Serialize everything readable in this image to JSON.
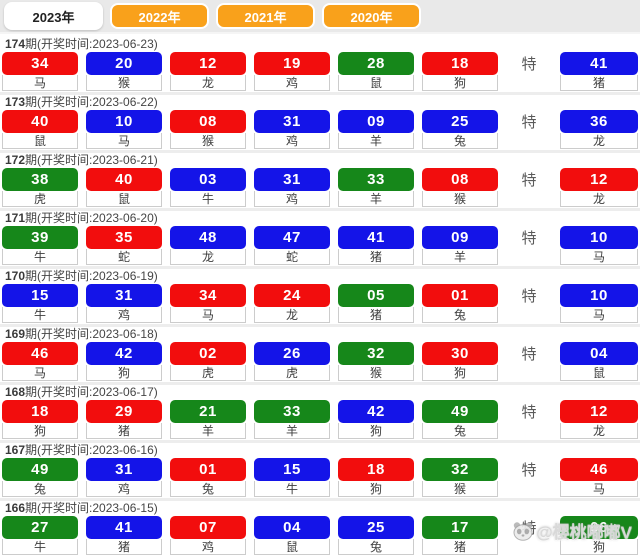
{
  "colors": {
    "orange": "#f9a11b",
    "red": "#f20d0d",
    "blue": "#1414e8",
    "green": "#16871a"
  },
  "tabs": [
    {
      "label": "2023年",
      "active": true
    },
    {
      "label": "2022年",
      "active": false
    },
    {
      "label": "2021年",
      "active": false
    },
    {
      "label": "2020年",
      "active": false
    }
  ],
  "labels": {
    "period_suffix": "期",
    "draw_time_prefix": "(开奖时间:",
    "draw_time_suffix": ")",
    "special": "特"
  },
  "rows": [
    {
      "period": "174",
      "draw_date": "2023-06-23",
      "numbers": [
        {
          "value": "34",
          "color": "red",
          "zodiac": "马"
        },
        {
          "value": "20",
          "color": "blue",
          "zodiac": "猴"
        },
        {
          "value": "12",
          "color": "red",
          "zodiac": "龙"
        },
        {
          "value": "19",
          "color": "red",
          "zodiac": "鸡"
        },
        {
          "value": "28",
          "color": "green",
          "zodiac": "鼠"
        },
        {
          "value": "18",
          "color": "red",
          "zodiac": "狗"
        }
      ],
      "special": {
        "value": "41",
        "color": "blue",
        "zodiac": "猪"
      }
    },
    {
      "period": "173",
      "draw_date": "2023-06-22",
      "numbers": [
        {
          "value": "40",
          "color": "red",
          "zodiac": "鼠"
        },
        {
          "value": "10",
          "color": "blue",
          "zodiac": "马"
        },
        {
          "value": "08",
          "color": "red",
          "zodiac": "猴"
        },
        {
          "value": "31",
          "color": "blue",
          "zodiac": "鸡"
        },
        {
          "value": "09",
          "color": "blue",
          "zodiac": "羊"
        },
        {
          "value": "25",
          "color": "blue",
          "zodiac": "兔"
        }
      ],
      "special": {
        "value": "36",
        "color": "blue",
        "zodiac": "龙"
      }
    },
    {
      "period": "172",
      "draw_date": "2023-06-21",
      "numbers": [
        {
          "value": "38",
          "color": "green",
          "zodiac": "虎"
        },
        {
          "value": "40",
          "color": "red",
          "zodiac": "鼠"
        },
        {
          "value": "03",
          "color": "blue",
          "zodiac": "牛"
        },
        {
          "value": "31",
          "color": "blue",
          "zodiac": "鸡"
        },
        {
          "value": "33",
          "color": "green",
          "zodiac": "羊"
        },
        {
          "value": "08",
          "color": "red",
          "zodiac": "猴"
        }
      ],
      "special": {
        "value": "12",
        "color": "red",
        "zodiac": "龙"
      }
    },
    {
      "period": "171",
      "draw_date": "2023-06-20",
      "numbers": [
        {
          "value": "39",
          "color": "green",
          "zodiac": "牛"
        },
        {
          "value": "35",
          "color": "red",
          "zodiac": "蛇"
        },
        {
          "value": "48",
          "color": "blue",
          "zodiac": "龙"
        },
        {
          "value": "47",
          "color": "blue",
          "zodiac": "蛇"
        },
        {
          "value": "41",
          "color": "blue",
          "zodiac": "猪"
        },
        {
          "value": "09",
          "color": "blue",
          "zodiac": "羊"
        }
      ],
      "special": {
        "value": "10",
        "color": "blue",
        "zodiac": "马"
      }
    },
    {
      "period": "170",
      "draw_date": "2023-06-19",
      "numbers": [
        {
          "value": "15",
          "color": "blue",
          "zodiac": "牛"
        },
        {
          "value": "31",
          "color": "blue",
          "zodiac": "鸡"
        },
        {
          "value": "34",
          "color": "red",
          "zodiac": "马"
        },
        {
          "value": "24",
          "color": "red",
          "zodiac": "龙"
        },
        {
          "value": "05",
          "color": "green",
          "zodiac": "猪"
        },
        {
          "value": "01",
          "color": "red",
          "zodiac": "兔"
        }
      ],
      "special": {
        "value": "10",
        "color": "blue",
        "zodiac": "马"
      }
    },
    {
      "period": "169",
      "draw_date": "2023-06-18",
      "numbers": [
        {
          "value": "46",
          "color": "red",
          "zodiac": "马"
        },
        {
          "value": "42",
          "color": "blue",
          "zodiac": "狗"
        },
        {
          "value": "02",
          "color": "red",
          "zodiac": "虎"
        },
        {
          "value": "26",
          "color": "blue",
          "zodiac": "虎"
        },
        {
          "value": "32",
          "color": "green",
          "zodiac": "猴"
        },
        {
          "value": "30",
          "color": "red",
          "zodiac": "狗"
        }
      ],
      "special": {
        "value": "04",
        "color": "blue",
        "zodiac": "鼠"
      }
    },
    {
      "period": "168",
      "draw_date": "2023-06-17",
      "numbers": [
        {
          "value": "18",
          "color": "red",
          "zodiac": "狗"
        },
        {
          "value": "29",
          "color": "red",
          "zodiac": "猪"
        },
        {
          "value": "21",
          "color": "green",
          "zodiac": "羊"
        },
        {
          "value": "33",
          "color": "green",
          "zodiac": "羊"
        },
        {
          "value": "42",
          "color": "blue",
          "zodiac": "狗"
        },
        {
          "value": "49",
          "color": "green",
          "zodiac": "兔"
        }
      ],
      "special": {
        "value": "12",
        "color": "red",
        "zodiac": "龙"
      }
    },
    {
      "period": "167",
      "draw_date": "2023-06-16",
      "numbers": [
        {
          "value": "49",
          "color": "green",
          "zodiac": "兔"
        },
        {
          "value": "31",
          "color": "blue",
          "zodiac": "鸡"
        },
        {
          "value": "01",
          "color": "red",
          "zodiac": "兔"
        },
        {
          "value": "15",
          "color": "blue",
          "zodiac": "牛"
        },
        {
          "value": "18",
          "color": "red",
          "zodiac": "狗"
        },
        {
          "value": "32",
          "color": "green",
          "zodiac": "猴"
        }
      ],
      "special": {
        "value": "46",
        "color": "red",
        "zodiac": "马"
      }
    },
    {
      "period": "166",
      "draw_date": "2023-06-15",
      "numbers": [
        {
          "value": "27",
          "color": "green",
          "zodiac": "牛"
        },
        {
          "value": "41",
          "color": "blue",
          "zodiac": "猪"
        },
        {
          "value": "07",
          "color": "red",
          "zodiac": "鸡"
        },
        {
          "value": "04",
          "color": "blue",
          "zodiac": "鼠"
        },
        {
          "value": "25",
          "color": "blue",
          "zodiac": "兔"
        },
        {
          "value": "17",
          "color": "green",
          "zodiac": "猪"
        }
      ],
      "special": {
        "value": "06",
        "color": "green",
        "zodiac": "狗"
      }
    }
  ],
  "watermark": {
    "icon": "panda-icon",
    "text": "@樱桃嘟嘟V"
  }
}
